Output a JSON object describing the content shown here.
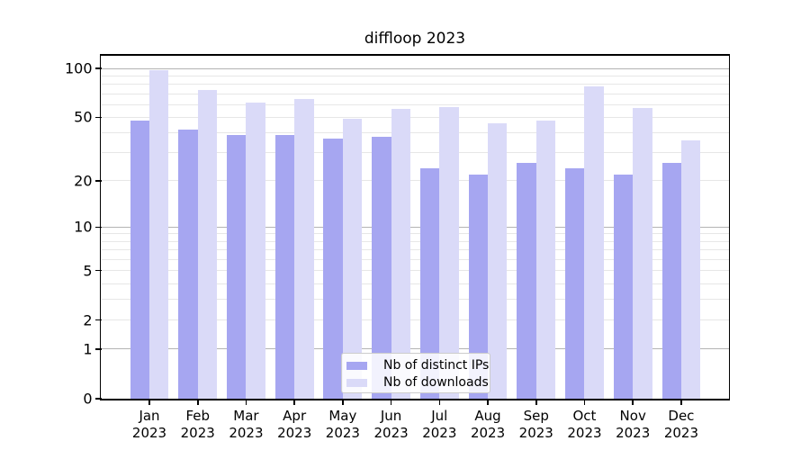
{
  "title": "diffloop 2023",
  "legend": {
    "items": [
      {
        "label": "Nb of distinct IPs",
        "color": "#a6a6f1"
      },
      {
        "label": "Nb of downloads",
        "color": "#dadaf8"
      }
    ]
  },
  "axis": {
    "y_tick_values": [
      0,
      1,
      2,
      5,
      10,
      20,
      50,
      100
    ],
    "major_gridlines": [
      1,
      10,
      100
    ],
    "minor_gridlines": [
      2,
      3,
      4,
      5,
      6,
      7,
      8,
      9,
      20,
      30,
      40,
      50,
      60,
      70,
      80,
      90
    ],
    "major_grid_color": "#b3b3b3",
    "minor_grid_color": "#e7e7e7",
    "year_label": "2023"
  },
  "chart_data": {
    "type": "bar",
    "title": "diffloop 2023",
    "categories": [
      "Jan",
      "Feb",
      "Mar",
      "Apr",
      "May",
      "Jun",
      "Jul",
      "Aug",
      "Sep",
      "Oct",
      "Nov",
      "Dec"
    ],
    "year": "2023",
    "series": [
      {
        "name": "Nb of distinct IPs",
        "color": "#a6a6f1",
        "values": [
          48,
          42,
          39,
          39,
          37,
          38,
          24,
          22,
          26,
          24,
          22,
          26
        ]
      },
      {
        "name": "Nb of downloads",
        "color": "#dadaf8",
        "values": [
          97,
          74,
          62,
          65,
          49,
          56,
          58,
          46,
          48,
          78,
          57,
          36
        ]
      }
    ],
    "yscale": "log1p",
    "ylim": [
      0,
      100
    ],
    "grid": true,
    "legend_position": "lower center"
  }
}
